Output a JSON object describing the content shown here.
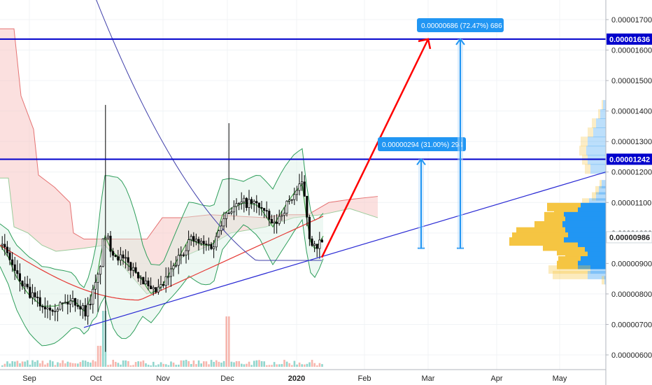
{
  "chart_data": {
    "type": "candlestick",
    "y_ticks": [
      "0.00001700",
      "0.00001600",
      "0.00001500",
      "0.00001400",
      "0.00001300",
      "0.00001200",
      "0.00001100",
      "0.00001000",
      "0.00000900",
      "0.00000800",
      "0.00000700",
      "0.00000600"
    ],
    "ylim": [
      5.8e-06,
      1.77e-05
    ],
    "x_ticks": [
      "Sep",
      "Oct",
      "Nov",
      "Dec",
      "2020",
      "Feb",
      "Mar",
      "Apr",
      "May"
    ],
    "resistance_levels": [
      {
        "value": 1.636e-05,
        "label": "0.00001636"
      },
      {
        "value": 1.242e-05,
        "label": "0.00001242"
      }
    ],
    "current_price": {
      "value": 9.86e-06,
      "label": "0.00000986"
    },
    "targets": [
      {
        "label": "0.00000294 (31.00%) 294",
        "from": 9.5e-06,
        "to": 1.242e-05
      },
      {
        "label": "0.00000686 (72.47%) 686",
        "from": 9.5e-06,
        "to": 1.636e-05
      }
    ],
    "projection": {
      "from": 9.2e-06,
      "to": 1.636e-05
    },
    "trendline": {
      "from": 6.9e-06,
      "to": 1.2e-05
    },
    "colors": {
      "level_line": "#0000cc",
      "label_bg": "#2196f3",
      "projection": "#ff0000",
      "trendline": "#2a2ad4",
      "candle": "#000000",
      "bollinger": "#2e9e5b",
      "ma_red": "#e53935",
      "ma_blue": "#3f3faa",
      "cloud": "#f8c7c4",
      "vp_up": "#2196f3",
      "vp_down": "#f5c542",
      "vol_up": "#7fcfc4",
      "vol_down": "#f4a9a0"
    }
  }
}
